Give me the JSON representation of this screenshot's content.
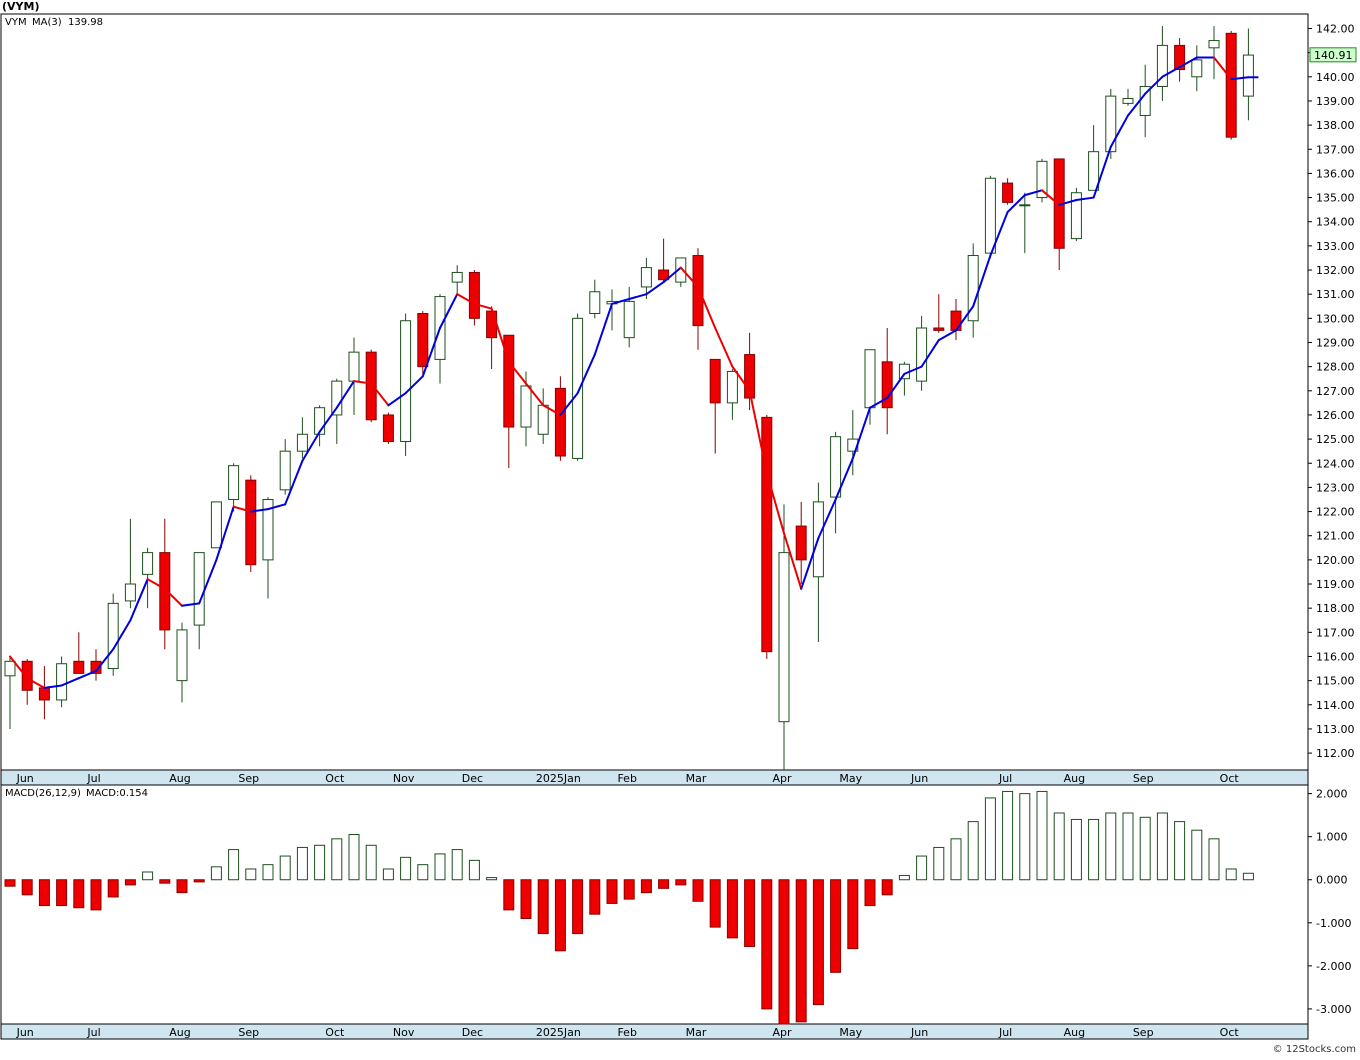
{
  "title": "(VYM)",
  "credit": "© 12Stocks.com",
  "chart_data": {
    "type": "candlestick",
    "symbol_label": "VYM",
    "ma_label": "MA(3)",
    "ma_value": "139.98",
    "last_price_label": "140.91",
    "ylim": [
      111.3,
      142.6
    ],
    "yticks": [
      "112.00",
      "113.00",
      "114.00",
      "115.00",
      "116.00",
      "117.00",
      "118.00",
      "119.00",
      "120.00",
      "121.00",
      "122.00",
      "123.00",
      "124.00",
      "125.00",
      "126.00",
      "127.00",
      "128.00",
      "129.00",
      "130.00",
      "131.00",
      "132.00",
      "133.00",
      "134.00",
      "135.00",
      "136.00",
      "137.00",
      "138.00",
      "139.00",
      "140.00",
      "141.00",
      "142.00"
    ],
    "months": [
      {
        "label": "Jun",
        "index": 1
      },
      {
        "label": "Jul",
        "index": 5
      },
      {
        "label": "Aug",
        "index": 10
      },
      {
        "label": "Sep",
        "index": 14
      },
      {
        "label": "Oct",
        "index": 19
      },
      {
        "label": "Nov",
        "index": 23
      },
      {
        "label": "Dec",
        "index": 27
      },
      {
        "label": "2025Jan",
        "index": 32
      },
      {
        "label": "Feb",
        "index": 36
      },
      {
        "label": "Mar",
        "index": 40
      },
      {
        "label": "Apr",
        "index": 45
      },
      {
        "label": "May",
        "index": 49
      },
      {
        "label": "Jun",
        "index": 53
      },
      {
        "label": "Jul",
        "index": 58
      },
      {
        "label": "Aug",
        "index": 62
      },
      {
        "label": "Sep",
        "index": 66
      },
      {
        "label": "Oct",
        "index": 71
      }
    ],
    "candles": [
      {
        "o": 115.2,
        "h": 116.0,
        "l": 113.0,
        "c": 115.8
      },
      {
        "o": 115.8,
        "h": 115.9,
        "l": 114.0,
        "c": 114.6
      },
      {
        "o": 114.7,
        "h": 115.6,
        "l": 113.4,
        "c": 114.2
      },
      {
        "o": 114.2,
        "h": 116.0,
        "l": 113.9,
        "c": 115.7
      },
      {
        "o": 115.8,
        "h": 117.0,
        "l": 115.3,
        "c": 115.3
      },
      {
        "o": 115.8,
        "h": 116.3,
        "l": 115.0,
        "c": 115.3
      },
      {
        "o": 115.5,
        "h": 118.6,
        "l": 115.2,
        "c": 118.2
      },
      {
        "o": 118.3,
        "h": 121.7,
        "l": 118.0,
        "c": 119.0
      },
      {
        "o": 119.4,
        "h": 120.5,
        "l": 118.0,
        "c": 120.3
      },
      {
        "o": 120.3,
        "h": 121.7,
        "l": 116.3,
        "c": 117.1
      },
      {
        "o": 115.0,
        "h": 117.4,
        "l": 114.1,
        "c": 117.1
      },
      {
        "o": 117.3,
        "h": 120.3,
        "l": 116.3,
        "c": 120.3
      },
      {
        "o": 120.5,
        "h": 122.4,
        "l": 120.5,
        "c": 122.4
      },
      {
        "o": 122.5,
        "h": 124.0,
        "l": 122.0,
        "c": 123.9
      },
      {
        "o": 123.3,
        "h": 123.5,
        "l": 119.5,
        "c": 119.8
      },
      {
        "o": 120.0,
        "h": 122.6,
        "l": 118.4,
        "c": 122.5
      },
      {
        "o": 122.9,
        "h": 125.0,
        "l": 122.7,
        "c": 124.5
      },
      {
        "o": 124.5,
        "h": 125.9,
        "l": 124.2,
        "c": 125.2
      },
      {
        "o": 125.2,
        "h": 126.4,
        "l": 124.7,
        "c": 126.3
      },
      {
        "o": 126.0,
        "h": 127.5,
        "l": 124.8,
        "c": 127.4
      },
      {
        "o": 127.4,
        "h": 129.2,
        "l": 126.0,
        "c": 128.6
      },
      {
        "o": 128.6,
        "h": 128.7,
        "l": 125.7,
        "c": 125.8
      },
      {
        "o": 126.0,
        "h": 126.1,
        "l": 124.8,
        "c": 124.9
      },
      {
        "o": 124.9,
        "h": 130.2,
        "l": 124.3,
        "c": 129.9
      },
      {
        "o": 130.2,
        "h": 130.3,
        "l": 127.7,
        "c": 128.0
      },
      {
        "o": 128.3,
        "h": 131.0,
        "l": 127.3,
        "c": 130.9
      },
      {
        "o": 131.5,
        "h": 132.2,
        "l": 131.0,
        "c": 131.9
      },
      {
        "o": 131.9,
        "h": 132.0,
        "l": 129.7,
        "c": 130.0
      },
      {
        "o": 130.3,
        "h": 130.5,
        "l": 127.9,
        "c": 129.2
      },
      {
        "o": 129.3,
        "h": 129.3,
        "l": 123.8,
        "c": 125.5
      },
      {
        "o": 125.5,
        "h": 127.8,
        "l": 124.7,
        "c": 127.2
      },
      {
        "o": 125.2,
        "h": 127.1,
        "l": 124.8,
        "c": 126.4
      },
      {
        "o": 127.1,
        "h": 127.6,
        "l": 124.1,
        "c": 124.3
      },
      {
        "o": 124.2,
        "h": 130.2,
        "l": 124.1,
        "c": 130.0
      },
      {
        "o": 130.2,
        "h": 131.6,
        "l": 130.0,
        "c": 131.1
      },
      {
        "o": 130.6,
        "h": 131.2,
        "l": 129.5,
        "c": 130.7
      },
      {
        "o": 129.2,
        "h": 131.3,
        "l": 128.8,
        "c": 130.7
      },
      {
        "o": 131.3,
        "h": 132.5,
        "l": 130.8,
        "c": 132.1
      },
      {
        "o": 132.0,
        "h": 133.3,
        "l": 131.5,
        "c": 131.6
      },
      {
        "o": 131.5,
        "h": 132.5,
        "l": 131.3,
        "c": 132.5
      },
      {
        "o": 132.6,
        "h": 132.9,
        "l": 128.7,
        "c": 129.7
      },
      {
        "o": 128.3,
        "h": 128.3,
        "l": 124.4,
        "c": 126.5
      },
      {
        "o": 126.5,
        "h": 127.9,
        "l": 125.8,
        "c": 127.8
      },
      {
        "o": 128.5,
        "h": 129.4,
        "l": 126.2,
        "c": 126.7
      },
      {
        "o": 125.9,
        "h": 126.0,
        "l": 115.9,
        "c": 116.2
      },
      {
        "o": 113.3,
        "h": 122.3,
        "l": 111.3,
        "c": 120.3
      },
      {
        "o": 121.4,
        "h": 122.4,
        "l": 119.0,
        "c": 120.0
      },
      {
        "o": 119.3,
        "h": 123.2,
        "l": 116.6,
        "c": 122.4
      },
      {
        "o": 122.6,
        "h": 125.3,
        "l": 121.1,
        "c": 125.1
      },
      {
        "o": 124.5,
        "h": 126.2,
        "l": 123.5,
        "c": 125.0
      },
      {
        "o": 126.3,
        "h": 128.7,
        "l": 125.6,
        "c": 128.7
      },
      {
        "o": 128.2,
        "h": 129.6,
        "l": 125.2,
        "c": 126.3
      },
      {
        "o": 127.5,
        "h": 128.2,
        "l": 126.8,
        "c": 128.1
      },
      {
        "o": 127.4,
        "h": 130.1,
        "l": 127.0,
        "c": 129.6
      },
      {
        "o": 129.6,
        "h": 131.0,
        "l": 129.4,
        "c": 129.5
      },
      {
        "o": 130.3,
        "h": 130.8,
        "l": 129.1,
        "c": 129.5
      },
      {
        "o": 129.9,
        "h": 133.1,
        "l": 129.2,
        "c": 132.6
      },
      {
        "o": 132.7,
        "h": 135.9,
        "l": 132.5,
        "c": 135.8
      },
      {
        "o": 135.6,
        "h": 135.8,
        "l": 134.7,
        "c": 134.8
      },
      {
        "o": 134.7,
        "h": 135.2,
        "l": 132.7,
        "c": 134.7
      },
      {
        "o": 135.0,
        "h": 136.6,
        "l": 134.8,
        "c": 136.5
      },
      {
        "o": 136.6,
        "h": 136.6,
        "l": 132.0,
        "c": 132.9
      },
      {
        "o": 133.3,
        "h": 135.4,
        "l": 133.2,
        "c": 135.2
      },
      {
        "o": 135.3,
        "h": 138.0,
        "l": 135.3,
        "c": 136.9
      },
      {
        "o": 136.9,
        "h": 139.5,
        "l": 136.6,
        "c": 139.2
      },
      {
        "o": 138.9,
        "h": 139.5,
        "l": 138.8,
        "c": 139.1
      },
      {
        "o": 138.4,
        "h": 140.5,
        "l": 137.5,
        "c": 139.6
      },
      {
        "o": 139.6,
        "h": 142.1,
        "l": 139.0,
        "c": 141.3
      },
      {
        "o": 141.3,
        "h": 141.6,
        "l": 139.8,
        "c": 140.3
      },
      {
        "o": 140.0,
        "h": 141.3,
        "l": 139.4,
        "c": 140.7
      },
      {
        "o": 141.2,
        "h": 142.1,
        "l": 139.9,
        "c": 141.5
      },
      {
        "o": 141.8,
        "h": 141.9,
        "l": 137.4,
        "c": 137.5
      },
      {
        "o": 139.2,
        "h": 142.0,
        "l": 138.2,
        "c": 140.9
      }
    ],
    "ma": [
      116.0,
      115.1,
      114.7,
      114.8,
      115.1,
      115.4,
      116.3,
      117.5,
      119.2,
      118.8,
      118.1,
      118.2,
      120.0,
      122.2,
      122.0,
      122.1,
      122.3,
      124.1,
      125.3,
      126.3,
      127.4,
      127.3,
      126.4,
      126.9,
      127.6,
      129.6,
      131.0,
      130.6,
      130.4,
      128.2,
      127.3,
      126.4,
      126.0,
      126.9,
      128.5,
      130.6,
      130.8,
      131.0,
      131.5,
      132.1,
      131.3,
      129.6,
      128.0,
      127.0,
      123.6,
      121.1,
      118.8,
      120.9,
      122.5,
      124.2,
      126.3,
      126.7,
      127.7,
      128.0,
      129.1,
      129.5,
      130.5,
      132.6,
      134.4,
      135.1,
      135.3,
      134.7,
      134.9,
      135.0,
      137.1,
      138.4,
      139.3,
      140.0,
      140.4,
      140.8,
      140.8,
      139.9,
      139.98
    ],
    "macd_label": "MACD(26,12,9)",
    "macd_value_label": "MACD:0.154",
    "macd_ylim": [
      -3.35,
      2.2
    ],
    "macd_yticks": [
      {
        "v": 2.0,
        "t": "2.000"
      },
      {
        "v": 1.0,
        "t": "1.000"
      },
      {
        "v": 0.0,
        "t": "0.000"
      },
      {
        "v": -1.0,
        "t": "-1.000"
      },
      {
        "v": -2.0,
        "t": "-2.000"
      },
      {
        "v": -3.0,
        "t": "-3.000"
      }
    ],
    "macd": [
      -0.15,
      -0.35,
      -0.6,
      -0.6,
      -0.65,
      -0.7,
      -0.4,
      -0.12,
      0.18,
      -0.08,
      -0.3,
      -0.05,
      0.3,
      0.7,
      0.25,
      0.35,
      0.55,
      0.75,
      0.8,
      0.95,
      1.05,
      0.8,
      0.25,
      0.52,
      0.35,
      0.6,
      0.7,
      0.45,
      0.05,
      -0.7,
      -0.9,
      -1.25,
      -1.65,
      -1.25,
      -0.8,
      -0.55,
      -0.45,
      -0.3,
      -0.2,
      -0.12,
      -0.5,
      -1.1,
      -1.35,
      -1.55,
      -3.0,
      -3.35,
      -3.3,
      -2.9,
      -2.15,
      -1.6,
      -0.6,
      -0.35,
      0.1,
      0.55,
      0.75,
      0.95,
      1.35,
      1.9,
      2.05,
      2.0,
      2.05,
      1.55,
      1.4,
      1.4,
      1.55,
      1.55,
      1.45,
      1.55,
      1.35,
      1.15,
      0.95,
      0.25,
      0.15
    ]
  }
}
